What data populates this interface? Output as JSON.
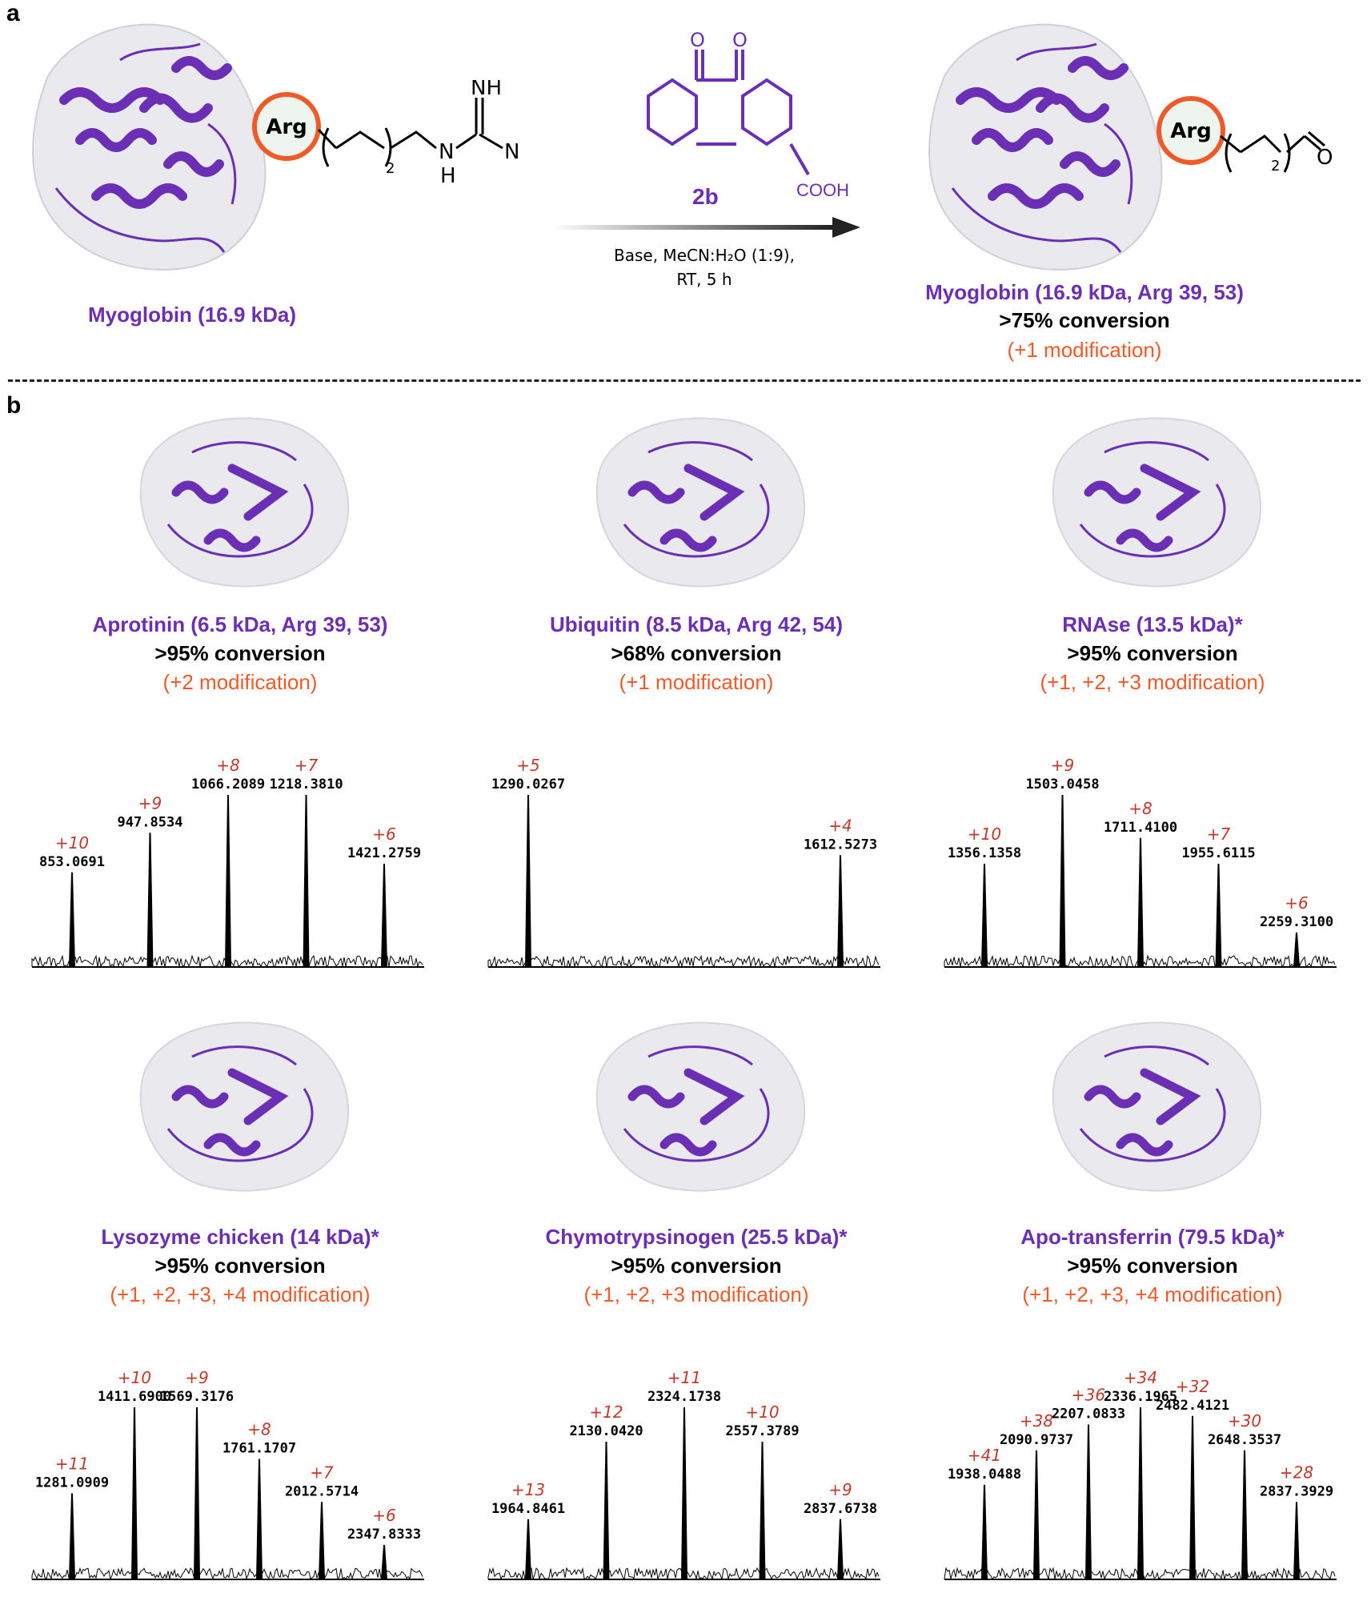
{
  "panel_a": {
    "letter": "a",
    "starting_protein": "Myoglobin (16.9 kDa)",
    "arg_label": "Arg",
    "reagent_name": "2b",
    "reagent_group": "COOH",
    "conditions_line1": "Base, MeCN:H₂O (1:9),",
    "conditions_line2": "RT, 5 h",
    "product_protein": "Myoglobin (16.9 kDa,  Arg 39, 53)",
    "product_conversion": ">75% conversion",
    "product_mods": "(+1 modification)",
    "colors": {
      "protein": "#6a2fb5",
      "highlight": "#f05a28"
    }
  },
  "panel_b": {
    "letter": "b",
    "proteins": [
      {
        "name": "Aprotinin (6.5 kDa,  Arg 39, 53)",
        "conversion": ">95% conversion",
        "mods": "(+2 modification)",
        "peaks": [
          {
            "z": "+10",
            "mz": "853.0691",
            "rel": 0.55
          },
          {
            "z": "+9",
            "mz": "947.8534",
            "rel": 0.78
          },
          {
            "z": "+8",
            "mz": "1066.2089",
            "rel": 1.0
          },
          {
            "z": "+7",
            "mz": "1218.3810",
            "rel": 1.0
          },
          {
            "z": "+6",
            "mz": "1421.2759",
            "rel": 0.6
          }
        ]
      },
      {
        "name": "Ubiquitin (8.5 kDa,  Arg 42, 54)",
        "conversion": ">68% conversion",
        "mods": "(+1 modification)",
        "peaks": [
          {
            "z": "+5",
            "mz": "1290.0267",
            "rel": 1.0
          },
          {
            "z": "+4",
            "mz": "1612.5273",
            "rel": 0.65
          }
        ]
      },
      {
        "name": "RNAse (13.5 kDa)*",
        "conversion": ">95% conversion",
        "mods": "(+1, +2, +3 modification)",
        "peaks": [
          {
            "z": "+10",
            "mz": "1356.1358",
            "rel": 0.6
          },
          {
            "z": "+9",
            "mz": "1503.0458",
            "rel": 1.0
          },
          {
            "z": "+8",
            "mz": "1711.4100",
            "rel": 0.75
          },
          {
            "z": "+7",
            "mz": "1955.6115",
            "rel": 0.6
          },
          {
            "z": "+6",
            "mz": "2259.3100",
            "rel": 0.2
          }
        ]
      },
      {
        "name": "Lysozyme chicken (14 kDa)*",
        "conversion": ">95% conversion",
        "mods": "(+1, +2, +3, +4 modification)",
        "peaks": [
          {
            "z": "+11",
            "mz": "1281.0909",
            "rel": 0.5
          },
          {
            "z": "+10",
            "mz": "1411.6900",
            "rel": 1.0
          },
          {
            "z": "+9",
            "mz": "1569.3176",
            "rel": 1.0
          },
          {
            "z": "+8",
            "mz": "1761.1707",
            "rel": 0.7
          },
          {
            "z": "+7",
            "mz": "2012.5714",
            "rel": 0.45
          },
          {
            "z": "+6",
            "mz": "2347.8333",
            "rel": 0.2
          }
        ]
      },
      {
        "name": "Chymotrypsinogen (25.5 kDa)*",
        "conversion": ">95% conversion",
        "mods": "(+1, +2, +3 modification)",
        "peaks": [
          {
            "z": "+13",
            "mz": "1964.8461",
            "rel": 0.35
          },
          {
            "z": "+12",
            "mz": "2130.0420",
            "rel": 0.8
          },
          {
            "z": "+11",
            "mz": "2324.1738",
            "rel": 1.0
          },
          {
            "z": "+10",
            "mz": "2557.3789",
            "rel": 0.8
          },
          {
            "z": "+9",
            "mz": "2837.6738",
            "rel": 0.35
          }
        ]
      },
      {
        "name": "Apo-transferrin (79.5 kDa)*",
        "conversion": ">95% conversion",
        "mods": "(+1, +2, +3, +4 modification)",
        "peaks": [
          {
            "z": "+41",
            "mz": "1938.0488",
            "rel": 0.55
          },
          {
            "z": "+38",
            "mz": "2090.9737",
            "rel": 0.75
          },
          {
            "z": "+36",
            "mz": "2207.0833",
            "rel": 0.9
          },
          {
            "z": "+34",
            "mz": "2336.1965",
            "rel": 1.0
          },
          {
            "z": "+32",
            "mz": "2482.4121",
            "rel": 0.95
          },
          {
            "z": "+30",
            "mz": "2648.3537",
            "rel": 0.75
          },
          {
            "z": "+28",
            "mz": "2837.3929",
            "rel": 0.45
          }
        ]
      }
    ]
  }
}
